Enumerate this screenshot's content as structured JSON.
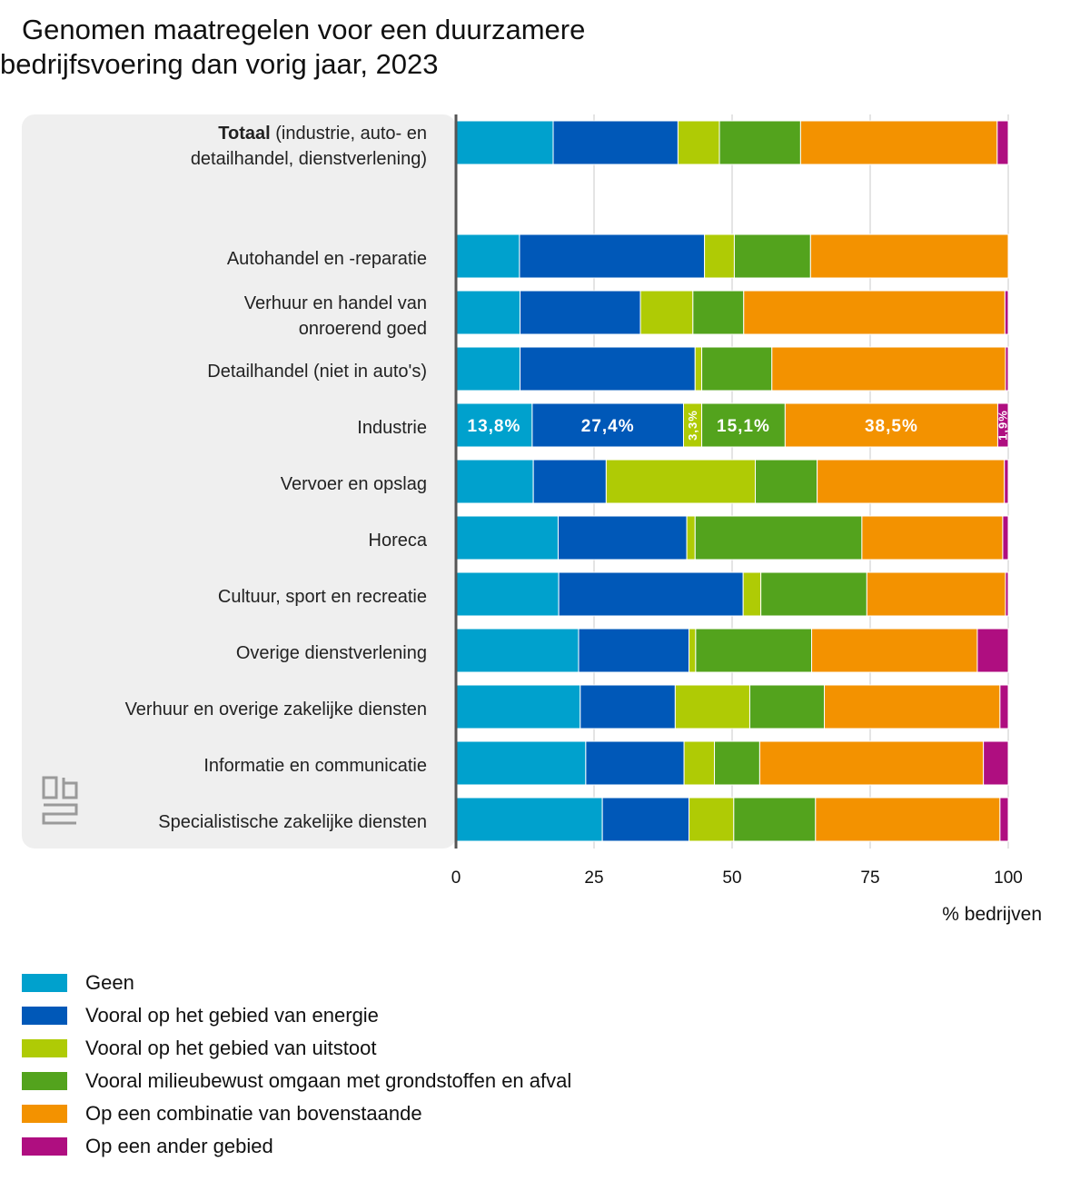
{
  "title_line1": "Genomen maatregelen voor een duurzamere",
  "title_line2": "bedrijfsvoering dan vorig jaar, 2023",
  "chart_data": {
    "type": "bar",
    "orientation": "horizontal",
    "stacked": true,
    "title": "Genomen maatregelen voor een duurzamere bedrijfsvoering dan vorig jaar, 2023",
    "xlabel": "% bedrijven",
    "xlim": [
      0,
      100
    ],
    "xticks": [
      "0",
      "25",
      "50",
      "75",
      "100"
    ],
    "grid": true,
    "legend_position": "bottom",
    "categories": [
      {
        "bold": "Totaal",
        "rest": "(industrie, auto- en",
        "line2": "detailhandel, dienstverlening)"
      },
      {
        "line1": "Autohandel en -reparatie"
      },
      {
        "line1": "Verhuur en handel van",
        "line2": "onroerend goed"
      },
      {
        "line1": "Detailhandel (niet in auto's)"
      },
      {
        "line1": "Industrie"
      },
      {
        "line1": "Vervoer en opslag"
      },
      {
        "line1": "Horeca"
      },
      {
        "line1": "Cultuur, sport en recreatie"
      },
      {
        "line1": "Overige dienstverlening"
      },
      {
        "line1": "Verhuur en overige zakelijke diensten"
      },
      {
        "line1": "Informatie en communicatie"
      },
      {
        "line1": "Specialistische zakelijke diensten"
      }
    ],
    "series": [
      {
        "name": "Geen",
        "color": "#00a1cd",
        "values": [
          17.6,
          11.5,
          11.6,
          11.6,
          13.8,
          14.0,
          18.5,
          18.6,
          22.2,
          22.5,
          23.5,
          26.5
        ]
      },
      {
        "name": "Vooral op het gebied van energie",
        "color": "#0058b8",
        "values": [
          22.6,
          33.5,
          21.8,
          31.7,
          27.4,
          13.2,
          23.3,
          33.4,
          20.0,
          17.2,
          17.8,
          15.7
        ]
      },
      {
        "name": "Vooral op het gebied van uitstoot",
        "color": "#afcb05",
        "values": [
          7.5,
          5.4,
          9.5,
          1.2,
          3.3,
          27.0,
          1.5,
          3.2,
          1.2,
          13.5,
          5.5,
          8.1
        ]
      },
      {
        "name": "Vooral milieubewust omgaan met grondstoffen en afval",
        "color": "#53a31d",
        "values": [
          14.7,
          13.8,
          9.2,
          12.7,
          15.1,
          11.2,
          30.2,
          19.2,
          21.0,
          13.5,
          8.2,
          14.8
        ]
      },
      {
        "name": "Op een combinatie van bovenstaande",
        "color": "#f39200",
        "values": [
          35.6,
          35.8,
          47.3,
          42.3,
          38.5,
          33.9,
          25.5,
          25.1,
          30.0,
          31.8,
          40.5,
          33.4
        ]
      },
      {
        "name": "Op een ander gebied",
        "color": "#af0e80",
        "values": [
          2.0,
          0,
          0.6,
          0.5,
          1.9,
          0.7,
          1.0,
          0.5,
          5.6,
          1.5,
          4.5,
          1.5
        ]
      }
    ],
    "data_labels": {
      "category": "Industrie",
      "labels": [
        "13,8%",
        "27,4%",
        "3,3%",
        "15,1%",
        "38,5%",
        "1,9%"
      ]
    }
  }
}
